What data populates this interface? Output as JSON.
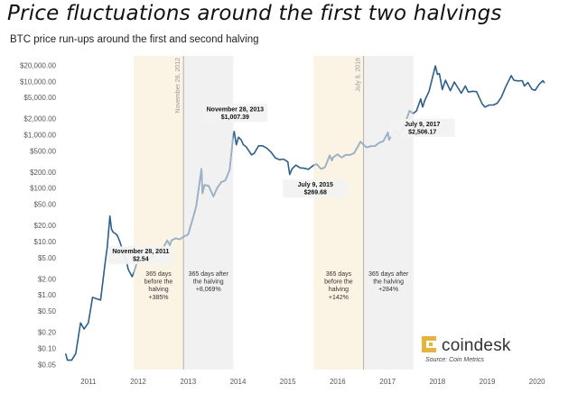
{
  "headline": "Price fluctuations around the first two halvings",
  "chart_data": {
    "type": "line",
    "subtitle": "BTC price run-ups around the first and second halving",
    "title": "",
    "xlabel": "",
    "ylabel": "",
    "y_scale": "log",
    "ylim": [
      0.04,
      30000
    ],
    "xlim": [
      "2010-07-01",
      "2020-05-01"
    ],
    "y_ticks": [
      {
        "v": 20000,
        "label": "$20,000.00"
      },
      {
        "v": 10000,
        "label": "$10,000.00"
      },
      {
        "v": 5000,
        "label": "$5,000.00"
      },
      {
        "v": 2000,
        "label": "$2,000.00"
      },
      {
        "v": 1000,
        "label": "$1,000.00"
      },
      {
        "v": 500,
        "label": "$500.00"
      },
      {
        "v": 200,
        "label": "$200.00"
      },
      {
        "v": 100,
        "label": "$100.00"
      },
      {
        "v": 50,
        "label": "$50.00"
      },
      {
        "v": 20,
        "label": "$20.00"
      },
      {
        "v": 10,
        "label": "$10.00"
      },
      {
        "v": 5,
        "label": "$5.00"
      },
      {
        "v": 2,
        "label": "$2.00"
      },
      {
        "v": 1,
        "label": "$1.00"
      },
      {
        "v": 0.5,
        "label": "$0.50"
      },
      {
        "v": 0.2,
        "label": "$0.20"
      },
      {
        "v": 0.1,
        "label": "$0.10"
      },
      {
        "v": 0.05,
        "label": "$0.05"
      }
    ],
    "x_ticks": [
      {
        "date": "2011-01-01",
        "label": "2011"
      },
      {
        "date": "2012-01-01",
        "label": "2012"
      },
      {
        "date": "2013-01-01",
        "label": "2013"
      },
      {
        "date": "2014-01-01",
        "label": "2014"
      },
      {
        "date": "2015-01-01",
        "label": "2015"
      },
      {
        "date": "2016-01-01",
        "label": "2016"
      },
      {
        "date": "2017-01-01",
        "label": "2017"
      },
      {
        "date": "2018-01-01",
        "label": "2018"
      },
      {
        "date": "2019-01-01",
        "label": "2019"
      },
      {
        "date": "2020-01-01",
        "label": "2020"
      }
    ],
    "halvings": [
      {
        "date": "2012-11-28",
        "label": "November 28, 2012"
      },
      {
        "date": "2016-07-09",
        "label": "July 9, 2016"
      }
    ],
    "bands": [
      {
        "start": "2011-11-28",
        "end": "2012-11-28",
        "color": "#fbf3e4",
        "lines": [
          "365 days",
          "before the",
          "halving",
          "+385%"
        ]
      },
      {
        "start": "2012-11-28",
        "end": "2013-11-28",
        "color": "#f1f1f1",
        "lines": [
          "365 days after",
          "the halving",
          "+8,069%"
        ]
      },
      {
        "start": "2015-07-09",
        "end": "2016-07-09",
        "color": "#fbf3e4",
        "lines": [
          "365 days",
          "before the",
          "halving",
          "+142%"
        ]
      },
      {
        "start": "2016-07-09",
        "end": "2017-07-09",
        "color": "#f1f1f1",
        "lines": [
          "365 days after",
          "the halving",
          "+284%"
        ]
      }
    ],
    "annotations": [
      {
        "date": "2011-11-28",
        "lines": [
          "November 28, 2011",
          "$2.54"
        ]
      },
      {
        "date": "2013-11-28",
        "lines": [
          "November 28, 2013",
          "$1,007.39"
        ]
      },
      {
        "date": "2015-07-09",
        "lines": [
          "July 9, 2015",
          "$269.68"
        ]
      },
      {
        "date": "2017-07-09",
        "lines": [
          "July 9, 2017",
          "$2,506.17"
        ]
      }
    ],
    "series": [
      {
        "color": "#2c5f8a",
        "highlight_color": "#9db2c6",
        "points": [
          [
            "2010-07-18",
            0.08
          ],
          [
            "2010-08-01",
            0.06
          ],
          [
            "2010-09-01",
            0.06
          ],
          [
            "2010-10-01",
            0.08
          ],
          [
            "2010-11-05",
            0.3
          ],
          [
            "2010-12-01",
            0.23
          ],
          [
            "2011-01-01",
            0.3
          ],
          [
            "2011-02-01",
            0.9
          ],
          [
            "2011-03-01",
            0.85
          ],
          [
            "2011-04-01",
            0.8
          ],
          [
            "2011-05-01",
            3.5
          ],
          [
            "2011-05-20",
            8.0
          ],
          [
            "2011-06-08",
            30.0
          ],
          [
            "2011-06-20",
            17.0
          ],
          [
            "2011-07-01",
            15.0
          ],
          [
            "2011-07-20",
            14.0
          ],
          [
            "2011-08-01",
            13.0
          ],
          [
            "2011-08-20",
            10.0
          ],
          [
            "2011-09-01",
            8.0
          ],
          [
            "2011-09-20",
            5.0
          ],
          [
            "2011-10-01",
            5.0
          ],
          [
            "2011-10-20",
            3.0
          ],
          [
            "2011-11-18",
            2.2
          ],
          [
            "2011-11-28",
            2.54
          ],
          [
            "2011-12-20",
            3.8
          ],
          [
            "2012-01-10",
            6.5
          ],
          [
            "2012-02-01",
            5.5
          ],
          [
            "2012-03-01",
            4.8
          ],
          [
            "2012-04-01",
            5.0
          ],
          [
            "2012-05-01",
            5.1
          ],
          [
            "2012-06-01",
            6.5
          ],
          [
            "2012-07-01",
            7.5
          ],
          [
            "2012-08-01",
            10.5
          ],
          [
            "2012-08-20",
            8.5
          ],
          [
            "2012-09-01",
            10.5
          ],
          [
            "2012-10-01",
            11.5
          ],
          [
            "2012-11-01",
            11.0
          ],
          [
            "2012-11-28",
            12.3
          ],
          [
            "2013-01-01",
            13.5
          ],
          [
            "2013-02-01",
            25.0
          ],
          [
            "2013-03-01",
            45.0
          ],
          [
            "2013-04-09",
            230.0
          ],
          [
            "2013-04-16",
            80.0
          ],
          [
            "2013-05-01",
            115.0
          ],
          [
            "2013-06-01",
            110.0
          ],
          [
            "2013-07-05",
            70.0
          ],
          [
            "2013-08-01",
            100.0
          ],
          [
            "2013-09-01",
            130.0
          ],
          [
            "2013-10-01",
            140.0
          ],
          [
            "2013-11-01",
            220.0
          ],
          [
            "2013-11-28",
            1007.39
          ],
          [
            "2013-12-04",
            1150.0
          ],
          [
            "2013-12-20",
            650.0
          ],
          [
            "2014-01-05",
            900.0
          ],
          [
            "2014-01-25",
            800.0
          ],
          [
            "2014-02-10",
            650.0
          ],
          [
            "2014-03-01",
            600.0
          ],
          [
            "2014-04-10",
            420.0
          ],
          [
            "2014-05-01",
            450.0
          ],
          [
            "2014-06-01",
            620.0
          ],
          [
            "2014-07-01",
            620.0
          ],
          [
            "2014-08-01",
            560.0
          ],
          [
            "2014-09-01",
            470.0
          ],
          [
            "2014-10-01",
            370.0
          ],
          [
            "2014-11-01",
            340.0
          ],
          [
            "2014-12-01",
            350.0
          ],
          [
            "2015-01-01",
            310.0
          ],
          [
            "2015-01-15",
            180.0
          ],
          [
            "2015-02-01",
            230.0
          ],
          [
            "2015-03-01",
            270.0
          ],
          [
            "2015-04-01",
            240.0
          ],
          [
            "2015-05-01",
            235.0
          ],
          [
            "2015-06-01",
            225.0
          ],
          [
            "2015-07-09",
            269.68
          ],
          [
            "2015-08-01",
            280.0
          ],
          [
            "2015-09-01",
            230.0
          ],
          [
            "2015-10-01",
            245.0
          ],
          [
            "2015-11-04",
            410.0
          ],
          [
            "2015-11-20",
            330.0
          ],
          [
            "2015-12-01",
            380.0
          ],
          [
            "2016-01-01",
            430.0
          ],
          [
            "2016-01-20",
            390.0
          ],
          [
            "2016-02-01",
            375.0
          ],
          [
            "2016-03-01",
            420.0
          ],
          [
            "2016-04-01",
            420.0
          ],
          [
            "2016-05-01",
            450.0
          ],
          [
            "2016-06-17",
            740.0
          ],
          [
            "2016-07-09",
            650.0
          ],
          [
            "2016-08-01",
            580.0
          ],
          [
            "2016-09-01",
            610.0
          ],
          [
            "2016-10-01",
            615.0
          ],
          [
            "2016-11-01",
            710.0
          ],
          [
            "2016-12-01",
            760.0
          ],
          [
            "2017-01-04",
            1100.0
          ],
          [
            "2017-01-12",
            800.0
          ],
          [
            "2017-02-01",
            1000.0
          ],
          [
            "2017-03-01",
            1200.0
          ],
          [
            "2017-03-25",
            950.0
          ],
          [
            "2017-04-15",
            1200.0
          ],
          [
            "2017-05-01",
            1400.0
          ],
          [
            "2017-06-10",
            2800.0
          ],
          [
            "2017-07-09",
            2506.17
          ],
          [
            "2017-08-01",
            2800.0
          ],
          [
            "2017-09-01",
            4700.0
          ],
          [
            "2017-09-15",
            3300.0
          ],
          [
            "2017-10-01",
            4400.0
          ],
          [
            "2017-11-01",
            6500.0
          ],
          [
            "2017-12-17",
            19500.0
          ],
          [
            "2018-01-01",
            13500.0
          ],
          [
            "2018-01-15",
            14000.0
          ],
          [
            "2018-02-06",
            7000.0
          ],
          [
            "2018-03-01",
            10500.0
          ],
          [
            "2018-04-06",
            6700.0
          ],
          [
            "2018-05-05",
            9700.0
          ],
          [
            "2018-06-25",
            6000.0
          ],
          [
            "2018-07-25",
            8200.0
          ],
          [
            "2018-08-15",
            6300.0
          ],
          [
            "2018-09-15",
            6500.0
          ],
          [
            "2018-10-15",
            6400.0
          ],
          [
            "2018-11-25",
            3800.0
          ],
          [
            "2018-12-15",
            3300.0
          ],
          [
            "2019-01-15",
            3600.0
          ],
          [
            "2019-02-15",
            3600.0
          ],
          [
            "2019-03-15",
            3900.0
          ],
          [
            "2019-04-15",
            5100.0
          ],
          [
            "2019-05-15",
            7800.0
          ],
          [
            "2019-06-26",
            12800.0
          ],
          [
            "2019-07-15",
            10500.0
          ],
          [
            "2019-08-15",
            10200.0
          ],
          [
            "2019-09-15",
            10300.0
          ],
          [
            "2019-09-30",
            8200.0
          ],
          [
            "2019-10-26",
            9500.0
          ],
          [
            "2019-11-25",
            7100.0
          ],
          [
            "2019-12-18",
            6800.0
          ],
          [
            "2020-01-15",
            8700.0
          ],
          [
            "2020-02-12",
            10300.0
          ],
          [
            "2020-02-25",
            9300.0
          ]
        ]
      }
    ]
  },
  "logo": {
    "word": "coindesk",
    "source": "Source: Coin Metrics",
    "color": "#e8b33b"
  }
}
